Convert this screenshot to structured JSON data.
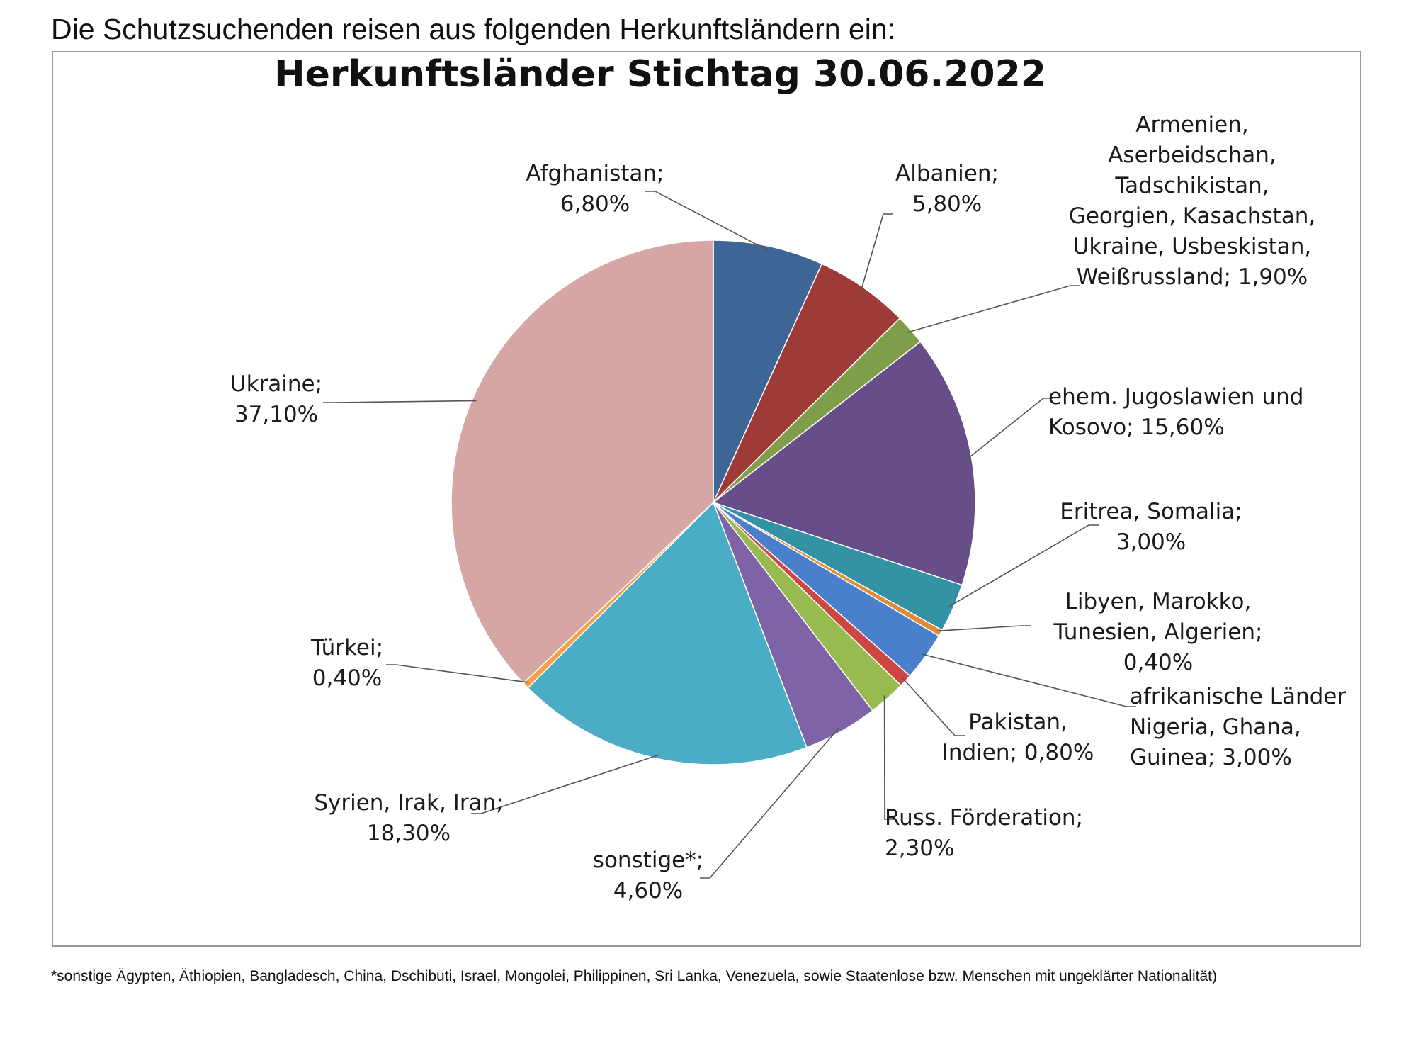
{
  "intro_text": "Die Schutzsuchenden reisen aus folgenden Herkunftsländern ein:",
  "footnote": "*sonstige Ägypten, Äthiopien, Bangladesch, China, Dschibuti, Israel, Mongolei, Philippinen, Sri Lanka, Venezuela, sowie Staatenlose bzw. Menschen mit ungeklärter Nationalität)",
  "chart_data": {
    "type": "pie",
    "title": "Herkunftsländer Stichtag 30.06.2022",
    "categories": [
      "Afghanistan",
      "Albanien",
      "Armenien, Aserbeidschan, Tadschikistan, Georgien, Kasachstan, Ukraine, Usbeskistan, Weißrussland",
      "ehem. Jugoslawien und Kosovo",
      "Eritrea, Somalia",
      "Libyen, Marokko, Tunesien, Algerien",
      "afrikanische Länder Nigeria, Ghana, Guinea",
      "Pakistan, Indien",
      "Russ. Förderation",
      "sonstige*",
      "Syrien, Irak, Iran",
      "Türkei",
      "Ukraine"
    ],
    "values": [
      6.8,
      5.8,
      1.9,
      15.6,
      3.0,
      0.4,
      3.0,
      0.8,
      2.3,
      4.6,
      18.3,
      0.4,
      37.1
    ],
    "colors": [
      "#3d6697",
      "#9e3b38",
      "#7f9e49",
      "#674e88",
      "#3492a5",
      "#e08b38",
      "#4a7fcb",
      "#cc4642",
      "#97bb4f",
      "#7e63a6",
      "#4bacc6",
      "#f3a048",
      "#d6a6a5"
    ],
    "labels": [
      [
        "Afghanistan;",
        "6,80%"
      ],
      [
        "Albanien;",
        "5,80%"
      ],
      [
        "Armenien,",
        "Aserbeidschan,",
        "Tadschikistan,",
        "Georgien, Kasachstan,",
        "Ukraine, Usbeskistan,",
        "Weißrussland; 1,90%"
      ],
      [
        "ehem. Jugoslawien und",
        "Kosovo; 15,60%"
      ],
      [
        "Eritrea, Somalia;",
        "3,00%"
      ],
      [
        "Libyen, Marokko,",
        "Tunesien, Algerien;",
        "0,40%"
      ],
      [
        "afrikanische Länder",
        "Nigeria, Ghana,",
        "Guinea; 3,00%"
      ],
      [
        "Pakistan,",
        "Indien; 0,80%"
      ],
      [
        "Russ. Förderation;",
        "2,30%"
      ],
      [
        "sonstige*;",
        "4,60%"
      ],
      [
        "Syrien, Irak, Iran;",
        "18,30%"
      ],
      [
        "Türkei;",
        "0,40%"
      ],
      [
        "Ukraine;",
        "37,10%"
      ]
    ],
    "legend": "none",
    "start_angle": "12 o'clock",
    "direction": "clockwise"
  }
}
